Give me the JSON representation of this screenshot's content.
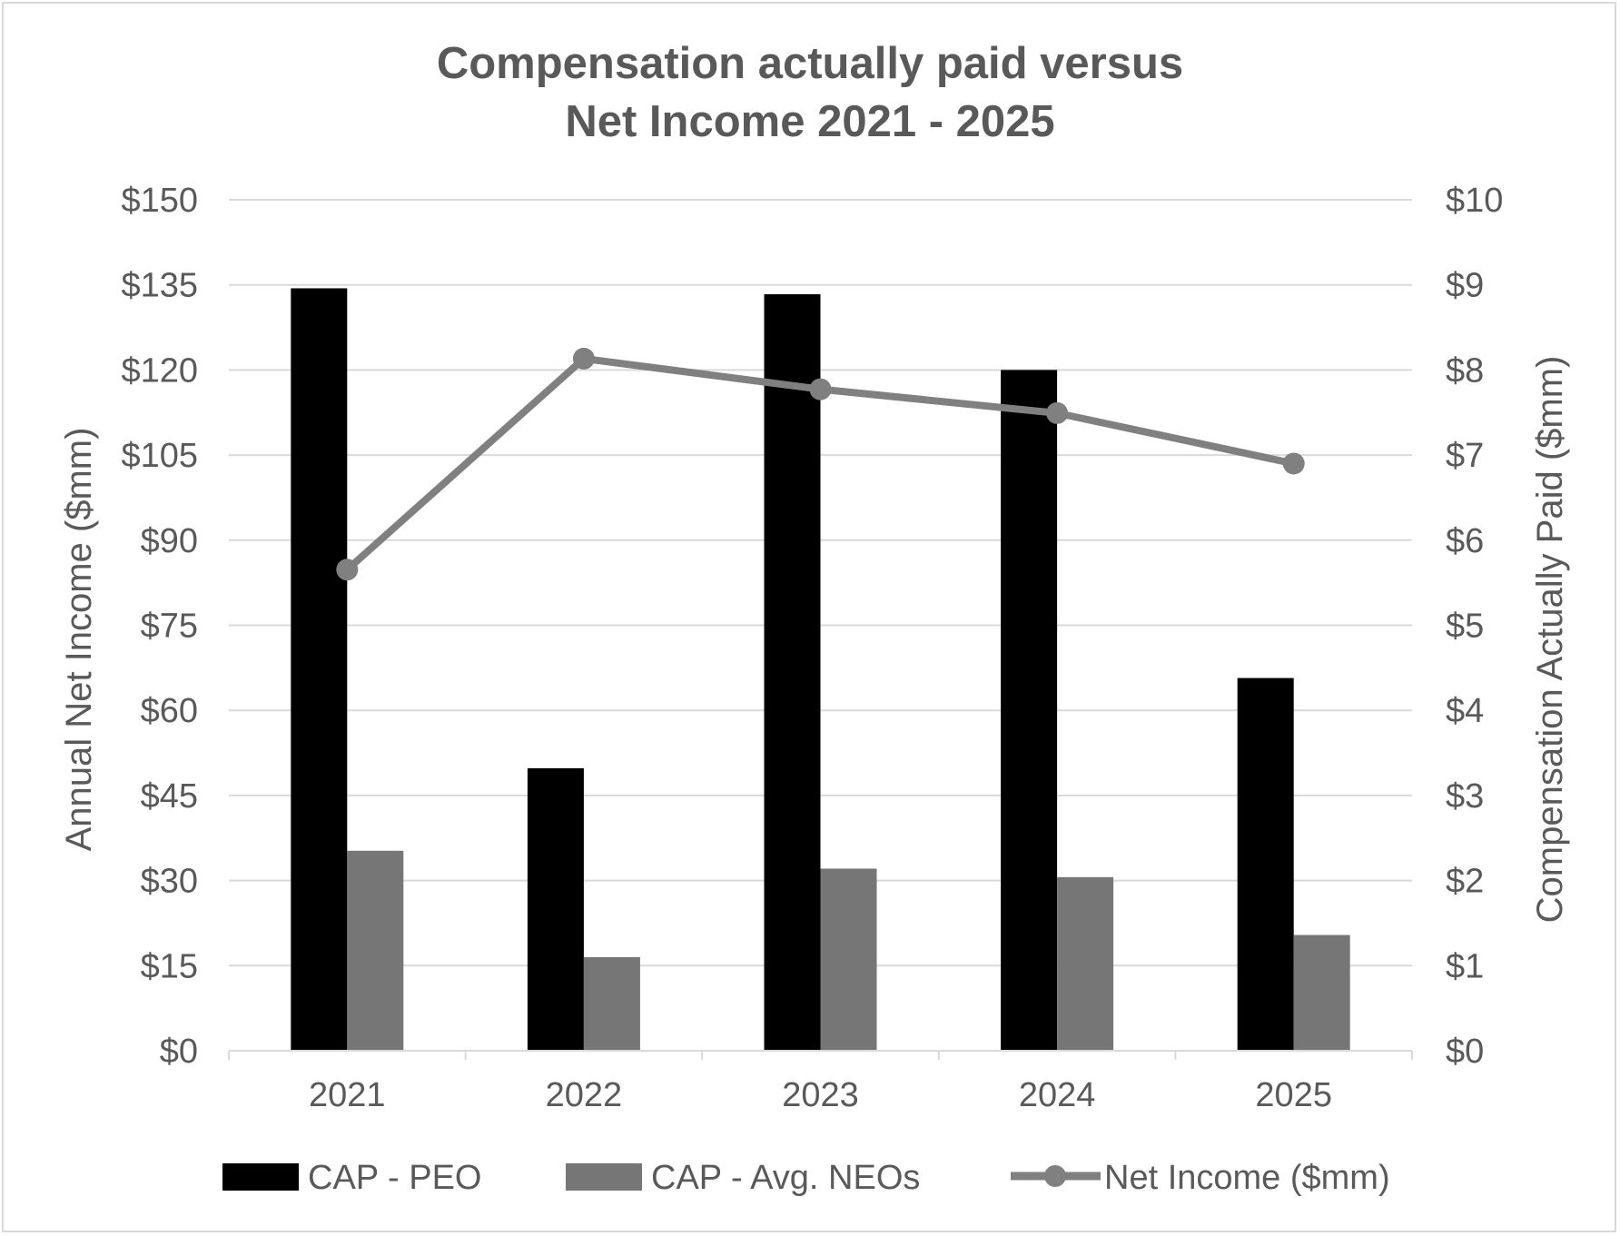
{
  "chart_data": {
    "type": "bar",
    "title_lines": [
      "Compensation actually paid versus",
      "Net Income 2021 - 2025"
    ],
    "categories": [
      "2021",
      "2022",
      "2023",
      "2024",
      "2025"
    ],
    "ylabel_left": "Annual Net Income ($mm)",
    "ylabel_right": "Compensation Actually Paid ($mm)",
    "ylim_left": [
      0,
      150
    ],
    "ylim_right": [
      0,
      10
    ],
    "left_ticks": [
      "$0",
      "$15",
      "$30",
      "$45",
      "$60",
      "$75",
      "$90",
      "$105",
      "$120",
      "$135",
      "$150"
    ],
    "right_ticks": [
      "$0",
      "$1",
      "$2",
      "$3",
      "$4",
      "$5",
      "$6",
      "$7",
      "$8",
      "$9",
      "$10"
    ],
    "grid": true,
    "legend_position": "bottom",
    "series": [
      {
        "name": "CAP - PEO",
        "kind": "bar",
        "axis": "right",
        "color": "#000000",
        "values": [
          8.96,
          3.32,
          8.89,
          8.0,
          4.38
        ]
      },
      {
        "name": "CAP - Avg. NEOs",
        "kind": "bar",
        "axis": "right",
        "color": "#767676",
        "values": [
          2.35,
          1.1,
          2.14,
          2.04,
          1.36
        ]
      },
      {
        "name": "Net Income ($mm)",
        "kind": "line",
        "axis": "left",
        "color": "#808080",
        "values": [
          84.8,
          122.0,
          116.6,
          112.4,
          103.5
        ]
      }
    ]
  }
}
